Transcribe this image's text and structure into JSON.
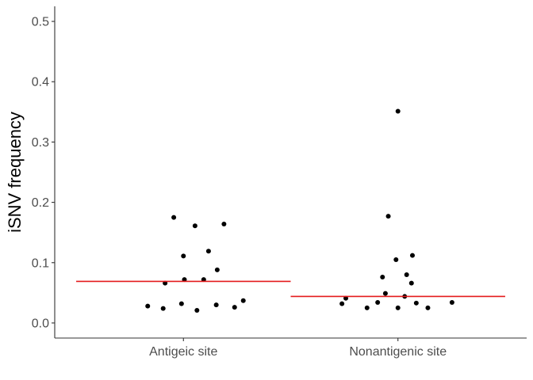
{
  "chart_data": {
    "type": "scatter",
    "ylabel": "iSNV frequency",
    "xlabel": "",
    "ylim": [
      -0.025,
      0.525
    ],
    "yticks": [
      "0.0",
      "0.1",
      "0.2",
      "0.3",
      "0.4",
      "0.5"
    ],
    "categories": [
      "Antigeic site",
      "Nonantigenic site"
    ],
    "grid": false,
    "colors": {
      "points": "#000000",
      "median": "#e41a1c",
      "axis": "#333333"
    },
    "series": [
      {
        "category": "Antigeic site",
        "median": 0.069,
        "points": [
          {
            "x": -0.37,
            "y": 0.028
          },
          {
            "x": -0.21,
            "y": 0.024
          },
          {
            "x": -0.19,
            "y": 0.066
          },
          {
            "x": -0.1,
            "y": 0.175
          },
          {
            "x": -0.02,
            "y": 0.032
          },
          {
            "x": 0.0,
            "y": 0.111
          },
          {
            "x": 0.01,
            "y": 0.072
          },
          {
            "x": 0.12,
            "y": 0.161
          },
          {
            "x": 0.14,
            "y": 0.021
          },
          {
            "x": 0.21,
            "y": 0.072
          },
          {
            "x": 0.26,
            "y": 0.119
          },
          {
            "x": 0.34,
            "y": 0.03
          },
          {
            "x": 0.35,
            "y": 0.088
          },
          {
            "x": 0.42,
            "y": 0.164
          },
          {
            "x": 0.53,
            "y": 0.026
          },
          {
            "x": 0.62,
            "y": 0.037
          }
        ]
      },
      {
        "category": "Nonantigenic site",
        "median": 0.044,
        "points": [
          {
            "x": -0.58,
            "y": 0.032
          },
          {
            "x": -0.54,
            "y": 0.041
          },
          {
            "x": -0.32,
            "y": 0.025
          },
          {
            "x": -0.21,
            "y": 0.034
          },
          {
            "x": -0.16,
            "y": 0.076
          },
          {
            "x": -0.13,
            "y": 0.049
          },
          {
            "x": -0.1,
            "y": 0.177
          },
          {
            "x": -0.02,
            "y": 0.105
          },
          {
            "x": 0.0,
            "y": 0.025
          },
          {
            "x": 0.0,
            "y": 0.351
          },
          {
            "x": 0.07,
            "y": 0.044
          },
          {
            "x": 0.09,
            "y": 0.08
          },
          {
            "x": 0.14,
            "y": 0.066
          },
          {
            "x": 0.15,
            "y": 0.112
          },
          {
            "x": 0.19,
            "y": 0.033
          },
          {
            "x": 0.31,
            "y": 0.025
          },
          {
            "x": 0.56,
            "y": 0.034
          }
        ]
      }
    ]
  }
}
